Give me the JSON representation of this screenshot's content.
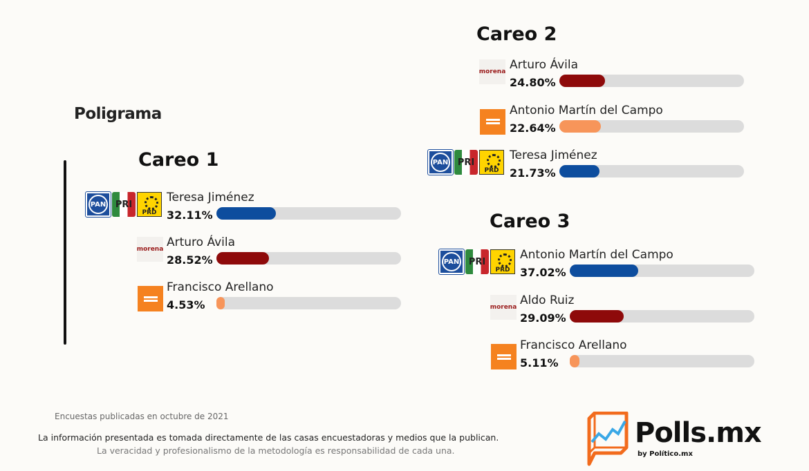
{
  "brand": "Poligrama",
  "colors": {
    "coalition": "#0d4d9e",
    "morena": "#8e0a0a",
    "mc": "#f7955a",
    "track": "#dcdcdc"
  },
  "careos": [
    {
      "title": "Careo 1",
      "rows": [
        {
          "party": "coalition",
          "name": "Teresa Jiménez",
          "pct_label": "32.11%",
          "pct": 32.11
        },
        {
          "party": "morena",
          "name": "Arturo Ávila",
          "pct_label": "28.52%",
          "pct": 28.52
        },
        {
          "party": "mc",
          "name": "Francisco Arellano",
          "pct_label": "4.53%",
          "pct": 4.53
        }
      ]
    },
    {
      "title": "Careo 2",
      "rows": [
        {
          "party": "morena",
          "name": "Arturo Ávila",
          "pct_label": "24.80%",
          "pct": 24.8
        },
        {
          "party": "mc",
          "name": "Antonio Martín del Campo",
          "pct_label": "22.64%",
          "pct": 22.64
        },
        {
          "party": "coalition",
          "name": "Teresa Jiménez",
          "pct_label": "21.73%",
          "pct": 21.73
        }
      ]
    },
    {
      "title": "Careo 3",
      "rows": [
        {
          "party": "coalition",
          "name": "Antonio Martín del Campo",
          "pct_label": "37.02%",
          "pct": 37.02
        },
        {
          "party": "morena",
          "name": "Aldo Ruiz",
          "pct_label": "29.09%",
          "pct": 29.09
        },
        {
          "party": "mc",
          "name": "Francisco Arellano",
          "pct_label": "5.11%",
          "pct": 5.11
        }
      ]
    }
  ],
  "logos": {
    "pan": "PAN",
    "pri": "PRI",
    "prd": "PRD",
    "morena": "morena"
  },
  "footer": {
    "date": "Encuestas publicadas en octubre de 2021",
    "line1": "La información presentada es tomada directamente de las casas encuestadoras y medios que la publican.",
    "line2": "La veracidad y profesionalismo de la metodología es responsabilidad de cada una."
  },
  "polls": {
    "name": "Polls.mx",
    "by": "by Político.mx"
  }
}
